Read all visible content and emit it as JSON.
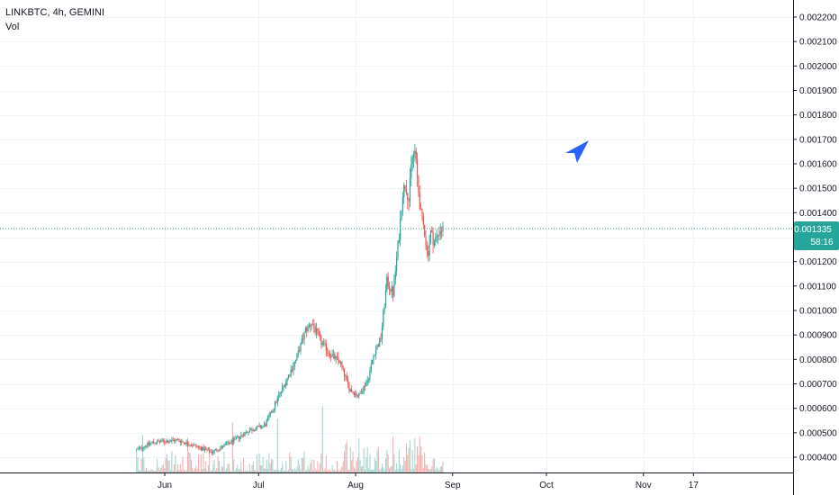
{
  "legend": {
    "title": "LINKBTC, 4h, GEMINI",
    "volume": "Vol"
  },
  "colors": {
    "up": "#26a69a",
    "down": "#ef5350",
    "vol_up": "#9dd3cd",
    "vol_down": "#f7a9a8",
    "grid": "#f0f3fa",
    "axis": "#131722",
    "last_price": "#26a69a",
    "cursor_arrow": "#2962ff"
  },
  "price_tag": {
    "value": "0.001335",
    "countdown": "58:16"
  },
  "chart_data": {
    "type": "candlestick",
    "symbol": "LINKBTC",
    "interval": "4h",
    "exchange": "GEMINI",
    "x_tick_labels": [
      "Jun",
      "Jul",
      "Aug",
      "Sep",
      "Oct",
      "Nov",
      "17"
    ],
    "y_tick_labels": [
      "0.002200",
      "0.002100",
      "0.002000",
      "0.001900",
      "0.001800",
      "0.001700",
      "0.001600",
      "0.001500",
      "0.001400",
      "0.001200",
      "0.001100",
      "0.001000",
      "0.000900",
      "0.000800",
      "0.000700",
      "0.000600",
      "0.000500",
      "0.000400"
    ],
    "ylim": [
      0.00035,
      0.00223
    ],
    "last_price": 0.001335,
    "grid": true,
    "series_anchors": [
      {
        "date": "2019-05-23",
        "price": 0.00043
      },
      {
        "date": "2019-05-28",
        "price": 0.00046
      },
      {
        "date": "2019-06-05",
        "price": 0.00047
      },
      {
        "date": "2019-06-10",
        "price": 0.00045
      },
      {
        "date": "2019-06-16",
        "price": 0.00042
      },
      {
        "date": "2019-06-22",
        "price": 0.00046
      },
      {
        "date": "2019-06-28",
        "price": 0.00051
      },
      {
        "date": "2019-07-03",
        "price": 0.00053
      },
      {
        "date": "2019-07-06",
        "price": 0.00061
      },
      {
        "date": "2019-07-10",
        "price": 0.00072
      },
      {
        "date": "2019-07-13",
        "price": 0.0008
      },
      {
        "date": "2019-07-16",
        "price": 0.00092
      },
      {
        "date": "2019-07-18",
        "price": 0.00095
      },
      {
        "date": "2019-07-21",
        "price": 0.00087
      },
      {
        "date": "2019-07-24",
        "price": 0.00082
      },
      {
        "date": "2019-07-27",
        "price": 0.00079
      },
      {
        "date": "2019-07-30",
        "price": 0.00068
      },
      {
        "date": "2019-08-02",
        "price": 0.00065
      },
      {
        "date": "2019-08-05",
        "price": 0.00072
      },
      {
        "date": "2019-08-07",
        "price": 0.00083
      },
      {
        "date": "2019-08-09",
        "price": 0.00088
      },
      {
        "date": "2019-08-11",
        "price": 0.00112
      },
      {
        "date": "2019-08-13",
        "price": 0.00107
      },
      {
        "date": "2019-08-15",
        "price": 0.00132
      },
      {
        "date": "2019-08-16",
        "price": 0.00148
      },
      {
        "date": "2019-08-17",
        "price": 0.00152
      },
      {
        "date": "2019-08-18",
        "price": 0.00145
      },
      {
        "date": "2019-08-19",
        "price": 0.00162
      },
      {
        "date": "2019-08-20",
        "price": 0.00165
      },
      {
        "date": "2019-08-21",
        "price": 0.0015
      },
      {
        "date": "2019-08-22",
        "price": 0.00138
      },
      {
        "date": "2019-08-23",
        "price": 0.00133
      },
      {
        "date": "2019-08-24",
        "price": 0.00122
      },
      {
        "date": "2019-08-25",
        "price": 0.00132
      },
      {
        "date": "2019-08-26",
        "price": 0.00128
      },
      {
        "date": "2019-08-27",
        "price": 0.0013
      },
      {
        "date": "2019-08-28",
        "price": 0.00133
      },
      {
        "date": "2019-08-29",
        "price": 0.001335
      }
    ]
  }
}
